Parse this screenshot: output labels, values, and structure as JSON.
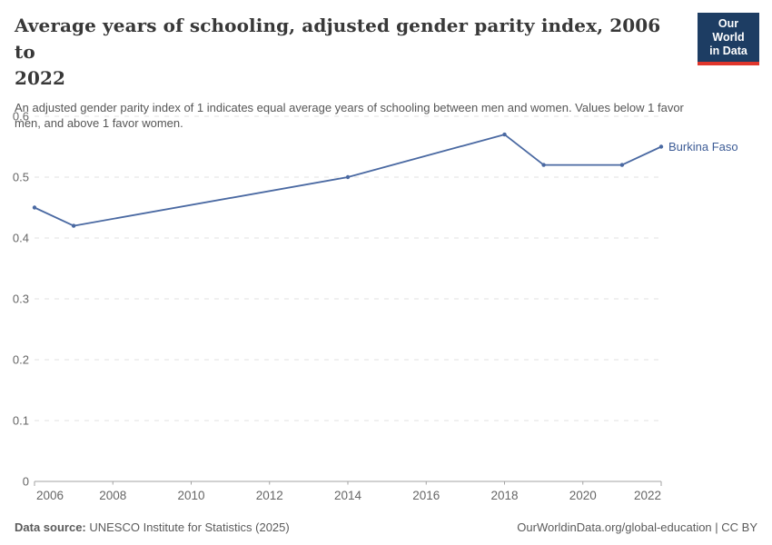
{
  "header": {
    "title_line1": "Average years of schooling, adjusted gender parity index, 2006 to",
    "title_line2": "2022",
    "subtitle": "An adjusted gender parity index of 1 indicates equal average years of schooling between men and women. Values below 1 favor men, and above 1 favor women.",
    "logo": {
      "line1": "Our World",
      "line2": "in Data",
      "bg_color": "#1d3d63",
      "accent_color": "#e0362c"
    }
  },
  "chart_data": {
    "type": "line",
    "title": "Average years of schooling, adjusted gender parity index, 2006 to 2022",
    "series": [
      {
        "name": "Burkina Faso",
        "color": "#4a69a2",
        "label_color": "#3d5c96",
        "x": [
          2006,
          2007,
          2014,
          2018,
          2019,
          2021,
          2022
        ],
        "values": [
          0.45,
          0.42,
          0.5,
          0.57,
          0.52,
          0.52,
          0.55
        ]
      }
    ],
    "xlabel": "",
    "ylabel": "",
    "xlim": [
      2006,
      2022
    ],
    "ylim": [
      0,
      0.6
    ],
    "y_ticks": [
      0,
      0.1,
      0.2,
      0.3,
      0.4,
      0.5,
      0.6
    ],
    "x_ticks": [
      2006,
      2008,
      2010,
      2012,
      2014,
      2016,
      2018,
      2020,
      2022
    ],
    "grid": "horizontal-dashed",
    "legend_position": "end-of-line-label"
  },
  "footer": {
    "source_label": "Data source:",
    "source_text": " UNESCO Institute for Statistics (2025)",
    "attribution": "OurWorldinData.org/global-education | CC BY"
  },
  "colors": {
    "grid": "#e1e1e1",
    "axis": "#a3a3a3",
    "tick_text": "#666666",
    "title_text": "#383838",
    "subtitle_text": "#565656",
    "footer_text": "#5b5b5b"
  }
}
